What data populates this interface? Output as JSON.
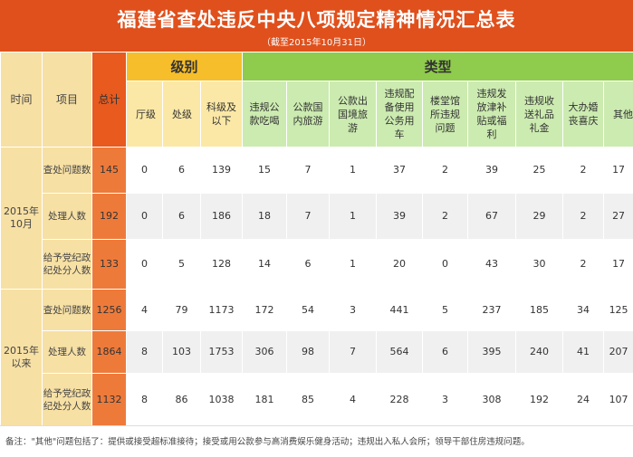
{
  "header": {
    "title": "福建省查处违反中央八项规定精神情况汇总表",
    "subtitle": "（截至2015年10月31日）"
  },
  "columns": {
    "time": "时间",
    "item": "项目",
    "total": "总计",
    "level_group": "级别",
    "type_group": "类型",
    "levels": [
      "厅级",
      "处级",
      "科级及以下"
    ],
    "types": [
      "违规公款吃喝",
      "公款国内旅游",
      "公款出国境旅游",
      "违规配备使用公务用车",
      "楼堂馆所违规问题",
      "违规发放津补贴或福利",
      "违规收送礼品礼金",
      "大办婚丧喜庆",
      "其他"
    ]
  },
  "periods": [
    {
      "label": "2015年10月",
      "rows": [
        {
          "item": "查处问题数",
          "total": "145",
          "levels": [
            "0",
            "6",
            "139"
          ],
          "types": [
            "15",
            "7",
            "1",
            "37",
            "2",
            "39",
            "25",
            "2",
            "17"
          ]
        },
        {
          "item": "处理人数",
          "total": "192",
          "levels": [
            "0",
            "6",
            "186"
          ],
          "types": [
            "18",
            "7",
            "1",
            "39",
            "2",
            "67",
            "29",
            "2",
            "27"
          ]
        },
        {
          "item": "给予党纪政纪处分人数",
          "total": "133",
          "levels": [
            "0",
            "5",
            "128"
          ],
          "types": [
            "14",
            "6",
            "1",
            "20",
            "0",
            "43",
            "30",
            "2",
            "17"
          ]
        }
      ]
    },
    {
      "label": "2015年以来",
      "rows": [
        {
          "item": "查处问题数",
          "total": "1256",
          "levels": [
            "4",
            "79",
            "1173"
          ],
          "types": [
            "172",
            "54",
            "3",
            "441",
            "5",
            "237",
            "185",
            "34",
            "125"
          ]
        },
        {
          "item": "处理人数",
          "total": "1864",
          "levels": [
            "8",
            "103",
            "1753"
          ],
          "types": [
            "306",
            "98",
            "7",
            "564",
            "6",
            "395",
            "240",
            "41",
            "207"
          ]
        },
        {
          "item": "给予党纪政纪处分人数",
          "total": "1132",
          "levels": [
            "8",
            "86",
            "1038"
          ],
          "types": [
            "181",
            "85",
            "4",
            "228",
            "3",
            "308",
            "192",
            "24",
            "107"
          ]
        }
      ]
    }
  ],
  "footer": {
    "note": "备注：\"其他\"问题包括了：提供或接受超标准接待；接受或用公款参与高消费娱乐健身活动；违规出入私人会所；领导干部住房违规问题。"
  }
}
